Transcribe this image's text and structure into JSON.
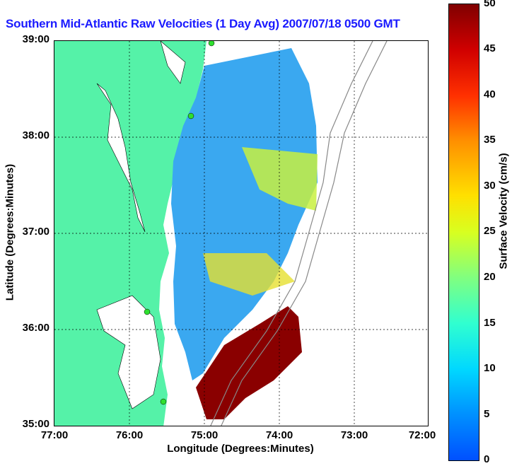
{
  "title": "Southern Mid-Atlantic Raw Velocities (1 Day Avg) 2007/07/18 0500 GMT",
  "axes": {
    "xlabel": "Longitude (Degrees:Minutes)",
    "ylabel": "Latitude (Degrees:Minutes)",
    "xticks": [
      "77:00",
      "76:00",
      "75:00",
      "74:00",
      "73:00",
      "72:00"
    ],
    "yticks": [
      "39:00",
      "38:00",
      "37:00",
      "36:00",
      "35:00"
    ]
  },
  "colorbar": {
    "label": "Surface Velocity (cm/s)",
    "ticks": [
      "50",
      "45",
      "40",
      "35",
      "30",
      "25",
      "20",
      "15",
      "10",
      "5",
      "0"
    ],
    "range": [
      0,
      50
    ]
  },
  "colors": {
    "land": "#55f2a8",
    "title": "#1a1aff",
    "low_velocity": "#3aa8f0",
    "high_velocity": "#8a0000"
  }
}
